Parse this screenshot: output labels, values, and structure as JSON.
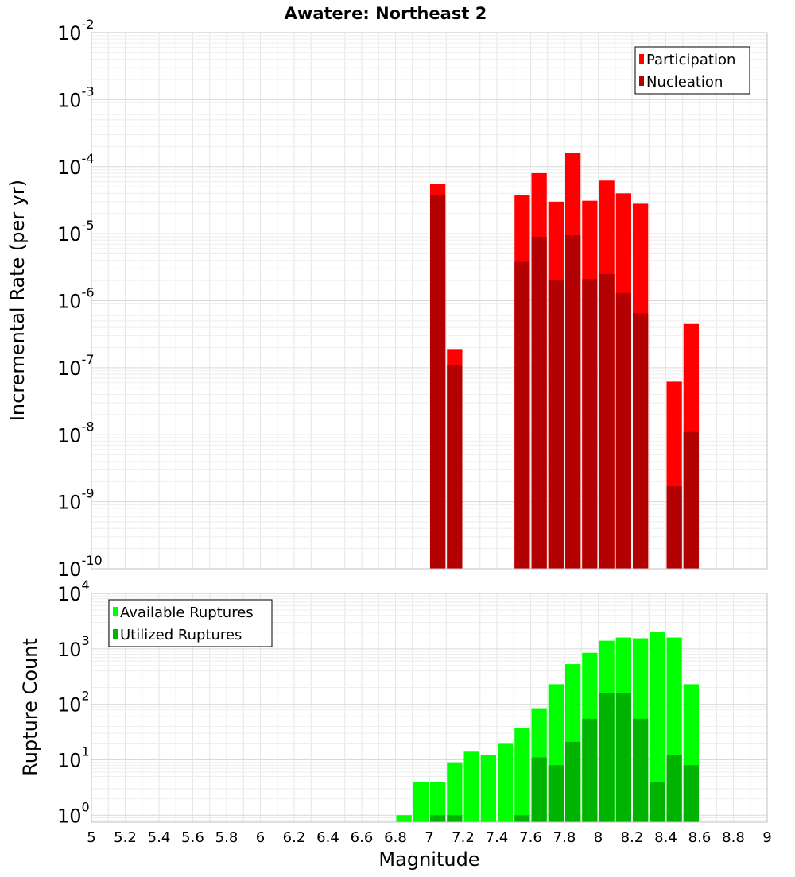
{
  "title": "Awatere: Northeast 2",
  "colors": {
    "participation": "#ff0000",
    "nucleation": "#b30000",
    "available": "#00ff00",
    "utilized": "#00b300",
    "grid": "#e6e6e6",
    "frame": "#c0c0c0"
  },
  "chart_data": [
    {
      "type": "bar",
      "panel": "top",
      "title": "Awatere: Northeast 2",
      "xlabel": "",
      "ylabel": "Incremental Rate (per yr)",
      "xlim": [
        5,
        9
      ],
      "ylim": [
        1e-10,
        0.01
      ],
      "yscale": "log",
      "y_tick_exponents": [
        -10,
        -9,
        -8,
        -7,
        -6,
        -5,
        -4,
        -3,
        -2
      ],
      "grid": true,
      "legend_position": "top-right",
      "bin_width": 0.1,
      "series": [
        {
          "name": "Participation",
          "x": [
            7.05,
            7.15,
            7.55,
            7.65,
            7.75,
            7.85,
            7.95,
            8.05,
            8.15,
            8.25,
            8.45,
            8.55
          ],
          "values": [
            5.5e-05,
            1.9e-07,
            3.8e-05,
            8e-05,
            3e-05,
            0.00016,
            3.1e-05,
            6.2e-05,
            4e-05,
            2.8e-05,
            6.2e-08,
            4.5e-07
          ]
        },
        {
          "name": "Nucleation",
          "x": [
            7.05,
            7.15,
            7.55,
            7.65,
            7.75,
            7.85,
            7.95,
            8.05,
            8.15,
            8.25,
            8.45,
            8.55
          ],
          "values": [
            3.8e-05,
            1.1e-07,
            3.8e-06,
            9e-06,
            2e-06,
            9.5e-06,
            2.1e-06,
            2.5e-06,
            1.3e-06,
            6.5e-07,
            1.7e-09,
            1.1e-08
          ]
        }
      ]
    },
    {
      "type": "bar",
      "panel": "bottom",
      "xlabel": "Magnitude",
      "ylabel": "Rupture Count",
      "xlim": [
        5,
        9
      ],
      "ylim": [
        0.75,
        10000
      ],
      "yscale": "log",
      "y_tick_exponents": [
        0,
        1,
        2,
        3,
        4
      ],
      "x_ticks": [
        "5",
        "5.2",
        "5.4",
        "5.6",
        "5.8",
        "6",
        "6.2",
        "6.4",
        "6.6",
        "6.8",
        "7",
        "7.2",
        "7.4",
        "7.6",
        "7.8",
        "8",
        "8.2",
        "8.4",
        "8.6",
        "8.8",
        "9"
      ],
      "grid": true,
      "legend_position": "top-left",
      "bin_width": 0.1,
      "series": [
        {
          "name": "Available Ruptures",
          "x": [
            6.85,
            6.95,
            7.05,
            7.15,
            7.25,
            7.35,
            7.45,
            7.55,
            7.65,
            7.75,
            7.85,
            7.95,
            8.05,
            8.15,
            8.25,
            8.35,
            8.45,
            8.55
          ],
          "values": [
            1,
            4,
            4,
            9,
            14,
            12,
            20,
            37,
            85,
            230,
            530,
            850,
            1400,
            1600,
            1550,
            2000,
            1600,
            230
          ]
        },
        {
          "name": "Utilized Ruptures",
          "x": [
            7.05,
            7.15,
            7.55,
            7.65,
            7.75,
            7.85,
            7.95,
            8.05,
            8.15,
            8.25,
            8.35,
            8.45,
            8.55
          ],
          "values": [
            1,
            1,
            1,
            11,
            8,
            21,
            55,
            160,
            160,
            55,
            4,
            12,
            8
          ]
        }
      ]
    }
  ]
}
